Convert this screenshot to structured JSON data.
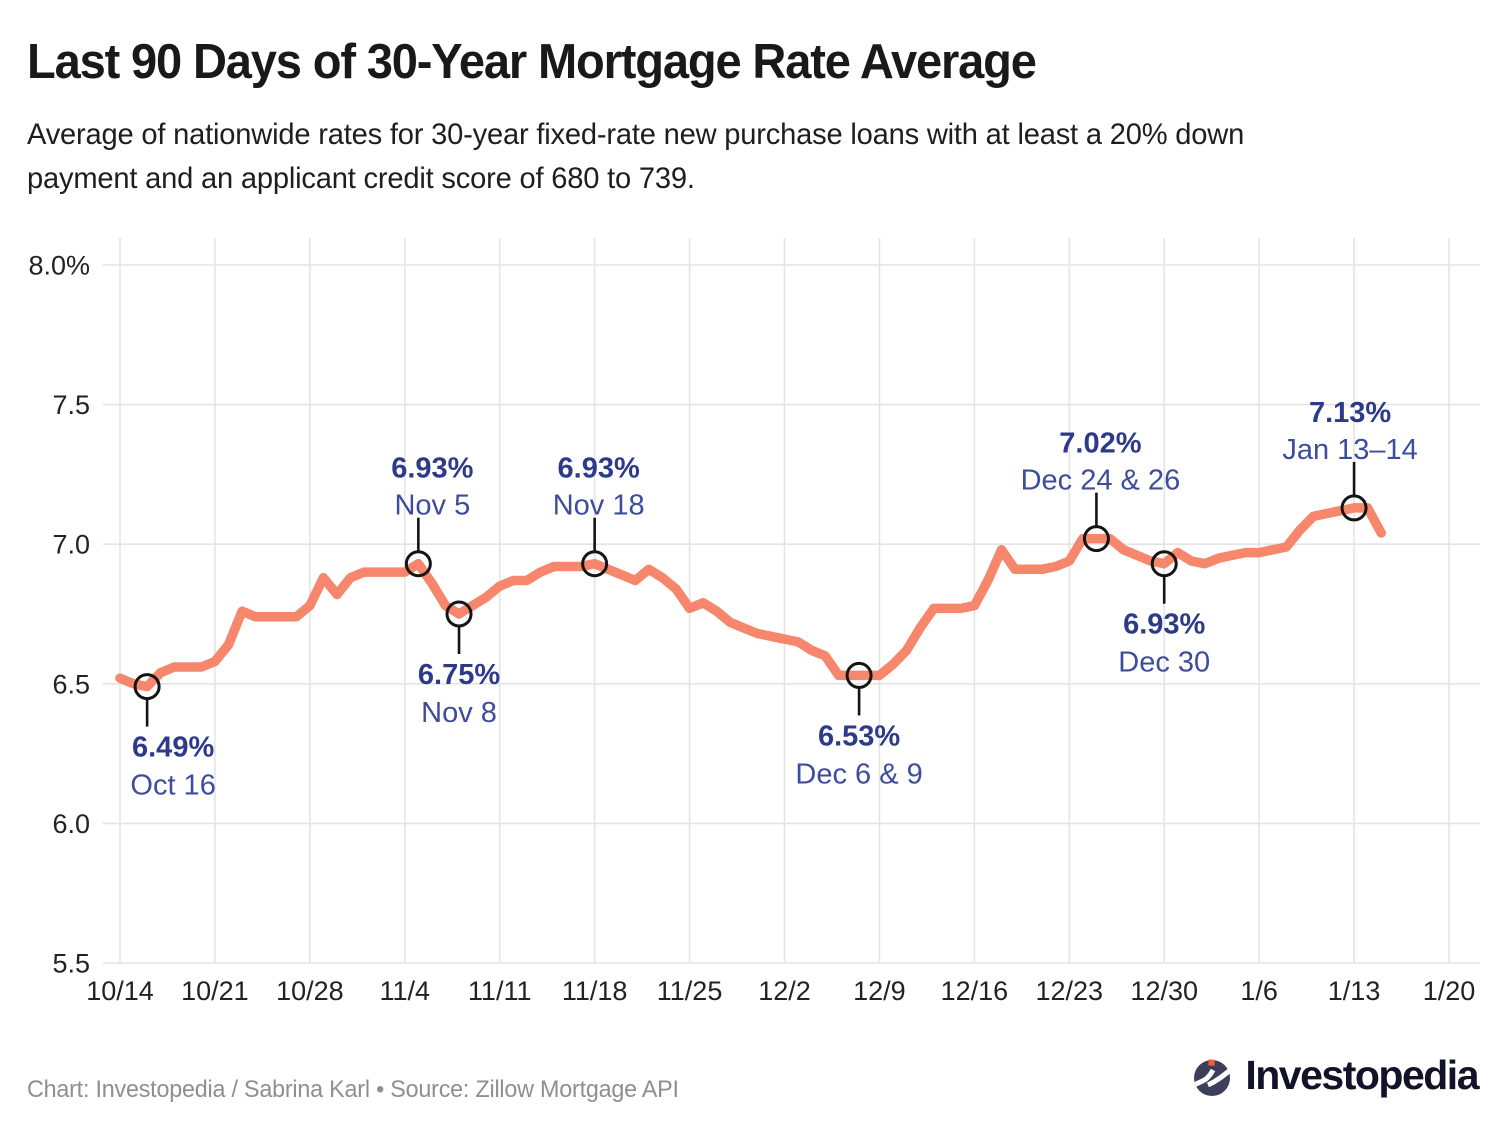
{
  "footer": {
    "credit": "Chart: Investopedia / Sabrina Karl • Source: Zillow Mortgage API",
    "logo_text": "Investopedia",
    "logo_circle_color": "#3d3f5a",
    "logo_dot_color": "#ef5f3c"
  },
  "chart_data": {
    "type": "line",
    "title": "Last 90 Days of 30-Year Mortgage Rate Average",
    "subtitle": "Average of nationwide rates for 30-year fixed-rate new purchase loans with at least a 20% down\npayment and an applicant credit score of 680 to 739.",
    "unit": "%",
    "ylim": [
      5.5,
      8.0
    ],
    "grid": true,
    "line_color": "#f6876c",
    "marker_stroke_color": "#141414",
    "grid_color": "#e4e4e4",
    "tick_label_color": "#222222",
    "annotation_value_color": "#2d398b",
    "annotation_date_color": "#3e4c9d",
    "y_ticks": [
      {
        "label": "8.0%",
        "value": 8.0
      },
      {
        "label": "7.5",
        "value": 7.5
      },
      {
        "label": "7.0",
        "value": 7.0
      },
      {
        "label": "6.5",
        "value": 6.5
      },
      {
        "label": "6.0",
        "value": 6.0
      },
      {
        "label": "5.5",
        "value": 5.5
      }
    ],
    "x_ticks": [
      {
        "label": "10/14",
        "day": 0
      },
      {
        "label": "10/21",
        "day": 7
      },
      {
        "label": "10/28",
        "day": 14
      },
      {
        "label": "11/4",
        "day": 21
      },
      {
        "label": "11/11",
        "day": 28
      },
      {
        "label": "11/18",
        "day": 35
      },
      {
        "label": "11/25",
        "day": 42
      },
      {
        "label": "12/2",
        "day": 49
      },
      {
        "label": "12/9",
        "day": 56
      },
      {
        "label": "12/16",
        "day": 63
      },
      {
        "label": "12/23",
        "day": 70
      },
      {
        "label": "12/30",
        "day": 77
      },
      {
        "label": "1/6",
        "day": 84
      },
      {
        "label": "1/13",
        "day": 91
      },
      {
        "label": "1/20",
        "day": 98
      }
    ],
    "dates": [
      "Oct 14",
      "Oct 15",
      "Oct 16",
      "Oct 17",
      "Oct 18",
      "Oct 19",
      "Oct 20",
      "Oct 21",
      "Oct 22",
      "Oct 23",
      "Oct 24",
      "Oct 25",
      "Oct 26",
      "Oct 27",
      "Oct 28",
      "Oct 29",
      "Oct 30",
      "Oct 31",
      "Nov 1",
      "Nov 2",
      "Nov 3",
      "Nov 4",
      "Nov 5",
      "Nov 6",
      "Nov 7",
      "Nov 8",
      "Nov 9",
      "Nov 10",
      "Nov 11",
      "Nov 12",
      "Nov 13",
      "Nov 14",
      "Nov 15",
      "Nov 16",
      "Nov 17",
      "Nov 18",
      "Nov 19",
      "Nov 20",
      "Nov 21",
      "Nov 22",
      "Nov 23",
      "Nov 24",
      "Nov 25",
      "Nov 26",
      "Nov 27",
      "Nov 28",
      "Nov 29",
      "Nov 30",
      "Dec 1",
      "Dec 2",
      "Dec 3",
      "Dec 4",
      "Dec 5",
      "Dec 6",
      "Dec 7",
      "Dec 8",
      "Dec 9",
      "Dec 10",
      "Dec 11",
      "Dec 12",
      "Dec 13",
      "Dec 14",
      "Dec 15",
      "Dec 16",
      "Dec 17",
      "Dec 18",
      "Dec 19",
      "Dec 20",
      "Dec 21",
      "Dec 22",
      "Dec 23",
      "Dec 24",
      "Dec 25",
      "Dec 26",
      "Dec 27",
      "Dec 28",
      "Dec 29",
      "Dec 30",
      "Dec 31",
      "Jan 1",
      "Jan 2",
      "Jan 3",
      "Jan 4",
      "Jan 5",
      "Jan 6",
      "Jan 7",
      "Jan 8",
      "Jan 9",
      "Jan 10",
      "Jan 11",
      "Jan 12",
      "Jan 13",
      "Jan 14",
      "Jan 15"
    ],
    "values": [
      6.52,
      6.5,
      6.49,
      6.54,
      6.56,
      6.56,
      6.56,
      6.58,
      6.64,
      6.76,
      6.74,
      6.74,
      6.74,
      6.74,
      6.78,
      6.88,
      6.82,
      6.88,
      6.9,
      6.9,
      6.9,
      6.9,
      6.93,
      6.86,
      6.78,
      6.75,
      6.78,
      6.81,
      6.85,
      6.87,
      6.87,
      6.9,
      6.92,
      6.92,
      6.92,
      6.93,
      6.91,
      6.89,
      6.87,
      6.91,
      6.88,
      6.84,
      6.77,
      6.79,
      6.76,
      6.72,
      6.7,
      6.68,
      6.67,
      6.66,
      6.65,
      6.62,
      6.6,
      6.53,
      6.53,
      6.53,
      6.53,
      6.57,
      6.62,
      6.7,
      6.77,
      6.77,
      6.77,
      6.78,
      6.87,
      6.98,
      6.91,
      6.91,
      6.91,
      6.92,
      6.94,
      7.02,
      7.02,
      7.02,
      6.98,
      6.96,
      6.94,
      6.93,
      6.97,
      6.94,
      6.93,
      6.95,
      6.96,
      6.97,
      6.97,
      6.98,
      6.99,
      7.05,
      7.1,
      7.11,
      7.12,
      7.13,
      7.13,
      7.04
    ],
    "annotations": [
      {
        "value_label": "6.49%",
        "date_label": "Oct 16",
        "day": 2,
        "value": 6.49,
        "side": "below",
        "dx": 26
      },
      {
        "value_label": "6.93%",
        "date_label": "Nov 5",
        "day": 22,
        "value": 6.93,
        "side": "above",
        "dx": 14
      },
      {
        "value_label": "6.75%",
        "date_label": "Nov 8",
        "day": 25,
        "value": 6.75,
        "side": "below",
        "dx": 0
      },
      {
        "value_label": "6.93%",
        "date_label": "Nov 18",
        "day": 35,
        "value": 6.93,
        "side": "above",
        "dx": 4
      },
      {
        "value_label": "6.53%",
        "date_label": "Dec 6 & 9",
        "day": 54.5,
        "value": 6.53,
        "side": "below",
        "dx": 0
      },
      {
        "value_label": "7.02%",
        "date_label": "Dec 24 & 26",
        "day": 72,
        "value": 7.02,
        "side": "above",
        "dx": 4
      },
      {
        "value_label": "6.93%",
        "date_label": "Dec 30",
        "day": 77,
        "value": 6.93,
        "side": "below",
        "dx": 0
      },
      {
        "value_label": "7.13%",
        "date_label": "Jan 13–14",
        "day": 91,
        "value": 7.13,
        "side": "above",
        "dx": -4
      }
    ]
  }
}
